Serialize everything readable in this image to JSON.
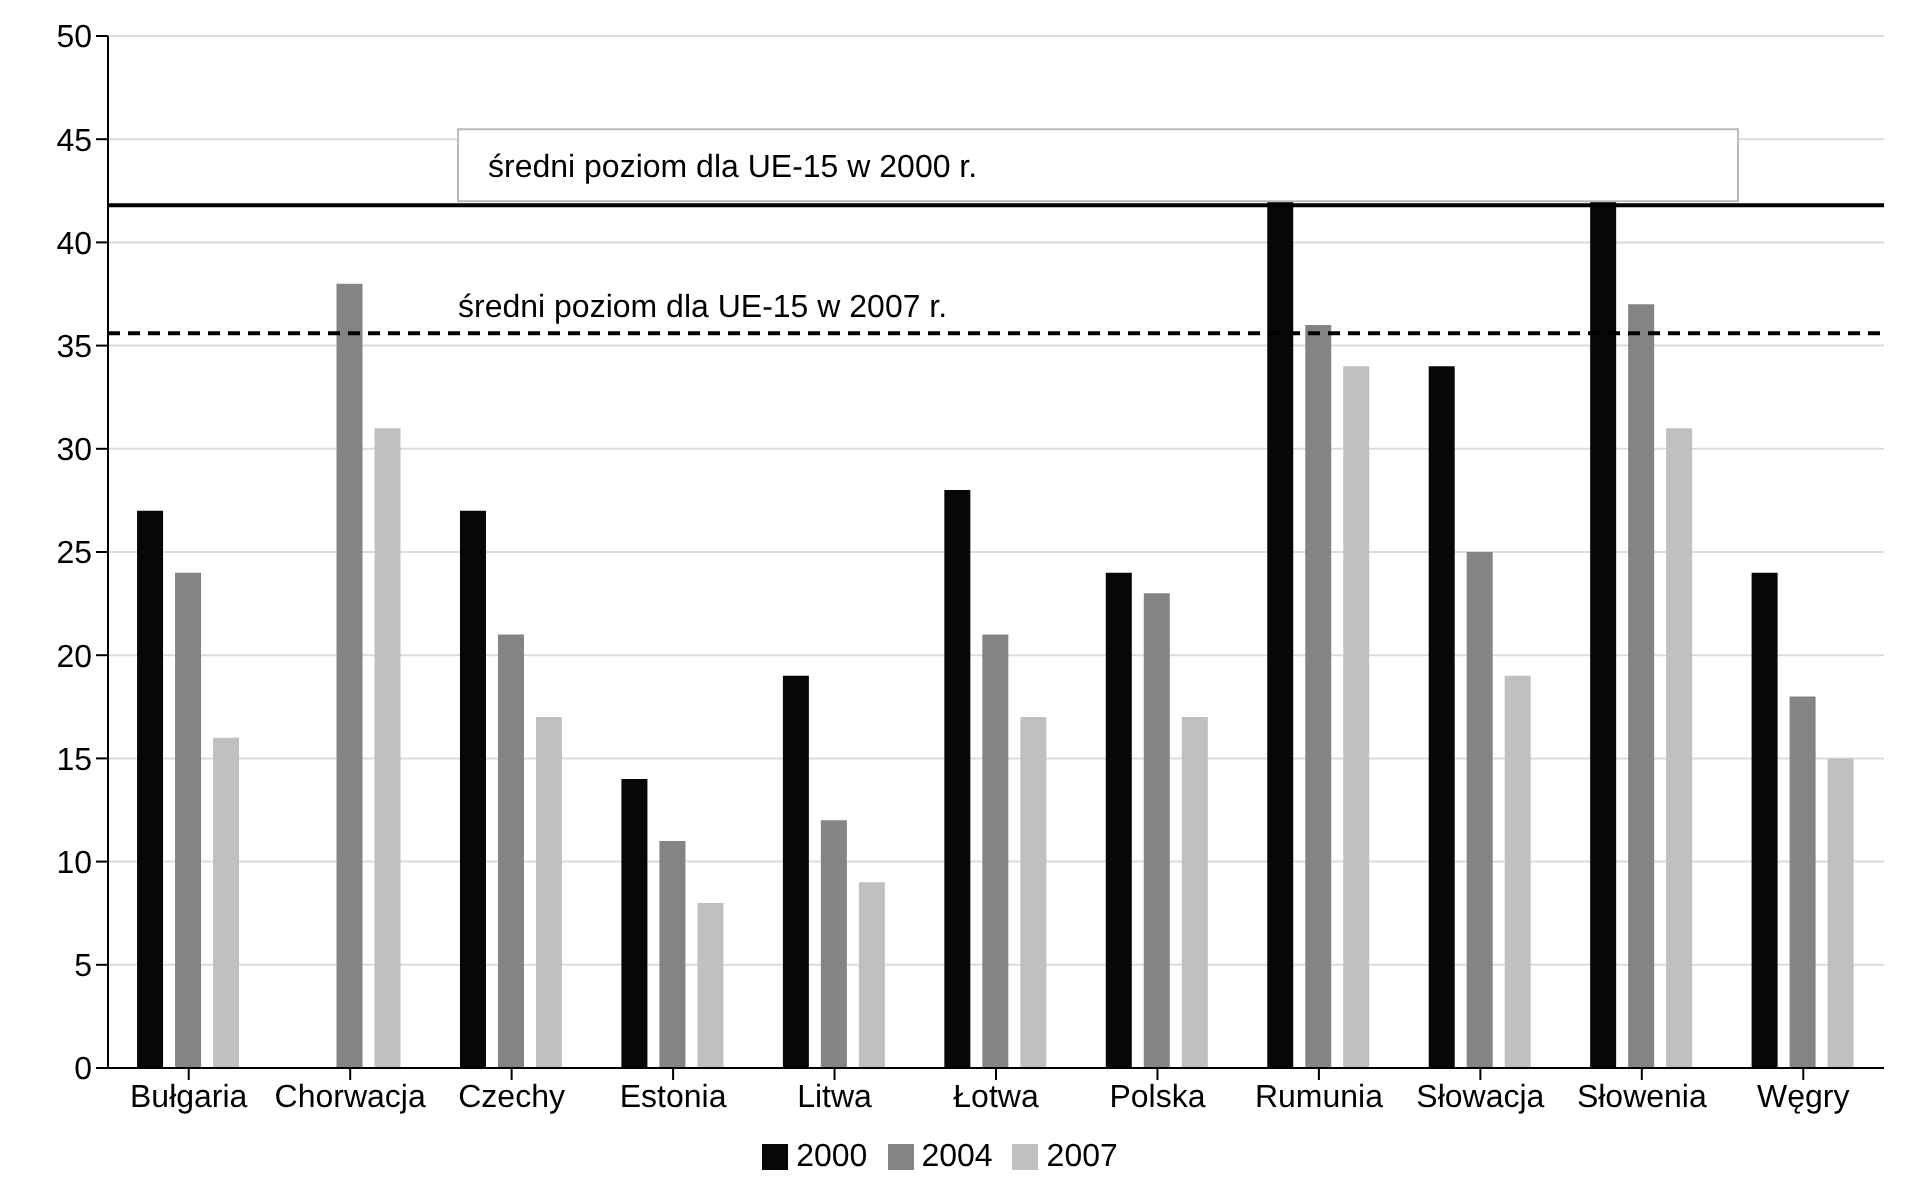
{
  "chart_data": {
    "type": "bar",
    "categories": [
      "Bułgaria",
      "Chorwacja",
      "Czechy",
      "Estonia",
      "Litwa",
      "Łotwa",
      "Polska",
      "Rumunia",
      "Słowacja",
      "Słowenia",
      "Węgry"
    ],
    "series": [
      {
        "name": "2000",
        "color": "#060807",
        "values": [
          27,
          null,
          27,
          14,
          19,
          28,
          24,
          42,
          34,
          42,
          24
        ]
      },
      {
        "name": "2004",
        "color": "#848484",
        "values": [
          24,
          38,
          21,
          11,
          12,
          21,
          23,
          36,
          25,
          37,
          18
        ]
      },
      {
        "name": "2007",
        "color": "#c0c0c0",
        "values": [
          16,
          31,
          17,
          8,
          9,
          17,
          17,
          34,
          19,
          31,
          15
        ]
      }
    ],
    "ylim": [
      0,
      50
    ],
    "yticks": [
      0,
      5,
      10,
      15,
      20,
      25,
      30,
      35,
      40,
      45,
      50
    ],
    "grid": "y",
    "legend": "bottom",
    "ref_lines": [
      {
        "axis": "y",
        "value": 41.8,
        "label": "średni poziom dla UE-15 w 2000 r.",
        "color": "#000000",
        "line_style": "solid"
      },
      {
        "axis": "y",
        "value": 35.6,
        "label": "średni poziom dla UE-15 w 2007 r.",
        "color": "#000000",
        "line_style": "dashed"
      }
    ]
  }
}
